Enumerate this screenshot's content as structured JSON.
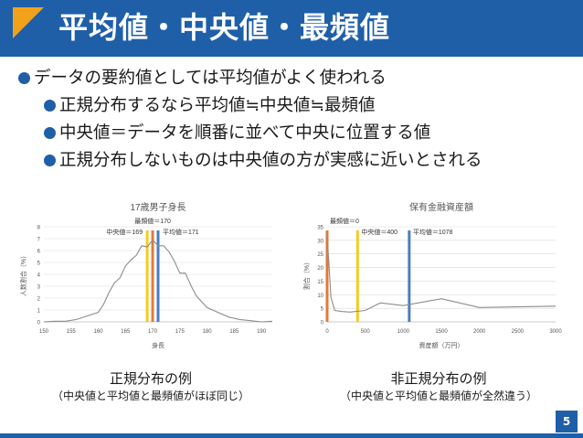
{
  "slide": {
    "title": "平均値・中央値・最頻値",
    "page_number": "5",
    "accent_color": "#1f5fa8",
    "title_marker_color": "#f2a21a"
  },
  "bullets": [
    {
      "level": 1,
      "text": "データの要約値としては平均値がよく使われる"
    },
    {
      "level": 2,
      "text": "正規分布するなら平均値≒中央値≒最頻値"
    },
    {
      "level": 2,
      "text": "中央値＝データを順番に並べて中央に位置する値"
    },
    {
      "level": 2,
      "text": "正規分布しないものは中央値の方が実感に近いとされる"
    }
  ],
  "captions": {
    "left": {
      "main": "正規分布の例",
      "sub": "（中央値と平均値と最頻値がほぼ同じ）"
    },
    "right": {
      "main": "非正規分布の例",
      "sub": "（中央値と平均値と最頻値が全然違う）"
    }
  },
  "chart_data": [
    {
      "type": "line",
      "title": "17歳男子身長",
      "xlabel": "身長",
      "ylabel": "人数割合（%）",
      "xlim": [
        150,
        192
      ],
      "ylim": [
        0,
        8
      ],
      "xticks": [
        150,
        155,
        160,
        165,
        170,
        175,
        180,
        185,
        190
      ],
      "yticks": [
        0,
        1,
        2,
        3,
        4,
        5,
        6,
        7,
        8
      ],
      "grid": true,
      "series": [
        {
          "values_x": [
            150,
            152,
            154,
            156,
            158,
            160,
            161,
            162,
            163,
            164,
            165,
            166,
            167,
            168,
            169,
            170,
            171,
            172,
            173,
            174,
            175,
            176,
            177,
            178,
            179,
            180,
            182,
            184,
            186,
            188,
            190,
            192
          ],
          "values_y": [
            0,
            0.05,
            0.05,
            0.2,
            0.5,
            0.8,
            1.5,
            2.5,
            3.3,
            3.7,
            4.7,
            5.2,
            5.6,
            6.4,
            6.3,
            6.9,
            6.4,
            6.4,
            5.9,
            5.1,
            4.1,
            4.1,
            3.1,
            2.2,
            1.7,
            1.2,
            0.8,
            0.4,
            0.2,
            0.1,
            0.0,
            0.05
          ]
        }
      ],
      "markers": [
        {
          "label": "最頻値＝170",
          "x": 170,
          "color": "#e07b39"
        },
        {
          "label": "中央値＝169",
          "x": 169,
          "color": "#f5cc1f"
        },
        {
          "label": "平均値＝171",
          "x": 171,
          "color": "#4a7fc1"
        }
      ]
    },
    {
      "type": "line",
      "title": "保有金融資産額",
      "xlabel": "資産額（万円）",
      "ylabel": "割合（%）",
      "xlim": [
        0,
        3000
      ],
      "ylim": [
        0,
        35
      ],
      "xticks": [
        0,
        500,
        1000,
        1500,
        2000,
        2500,
        3000
      ],
      "yticks": [
        0,
        5,
        10,
        15,
        20,
        25,
        30,
        35
      ],
      "grid": true,
      "series": [
        {
          "values_x": [
            0,
            50,
            100,
            200,
            300,
            500,
            700,
            1000,
            1500,
            2000,
            3000
          ],
          "values_y": [
            32,
            9,
            4.2,
            3.8,
            3.6,
            4.2,
            7.0,
            6.0,
            8.5,
            5.3,
            5.8
          ]
        }
      ],
      "markers": [
        {
          "label": "最頻値＝0",
          "x": 0,
          "color": "#e07b39"
        },
        {
          "label": "中央値＝400",
          "x": 400,
          "color": "#f5cc1f"
        },
        {
          "label": "平均値＝1078",
          "x": 1078,
          "color": "#4a7fc1"
        }
      ]
    }
  ]
}
